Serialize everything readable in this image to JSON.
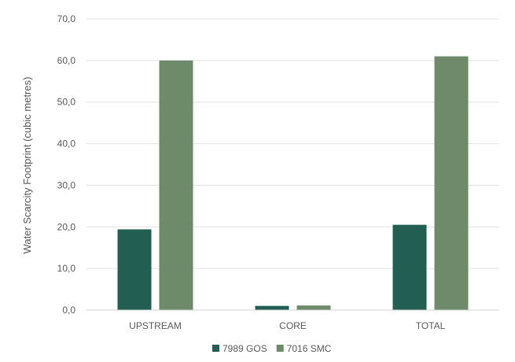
{
  "chart_data": {
    "type": "bar",
    "title": "",
    "xlabel": "",
    "ylabel": "Water Scarcity Footprint (cubic metres)",
    "categories": [
      "UPSTREAM",
      "CORE",
      "TOTAL"
    ],
    "series": [
      {
        "name": "7989 GOS",
        "color": "#225f52",
        "values": [
          19.4,
          1.0,
          20.5
        ]
      },
      {
        "name": "7016 SMC",
        "color": "#6e8a6a",
        "values": [
          60.0,
          1.1,
          61.0
        ]
      }
    ],
    "ylim": [
      0,
      70
    ],
    "yticks": [
      0,
      10,
      20,
      30,
      40,
      50,
      60,
      70
    ],
    "ytick_labels": [
      "0,0",
      "10,0",
      "20,0",
      "30,0",
      "40,0",
      "50,0",
      "60,0",
      "70,0"
    ],
    "grid": true,
    "legend_position": "bottom"
  }
}
